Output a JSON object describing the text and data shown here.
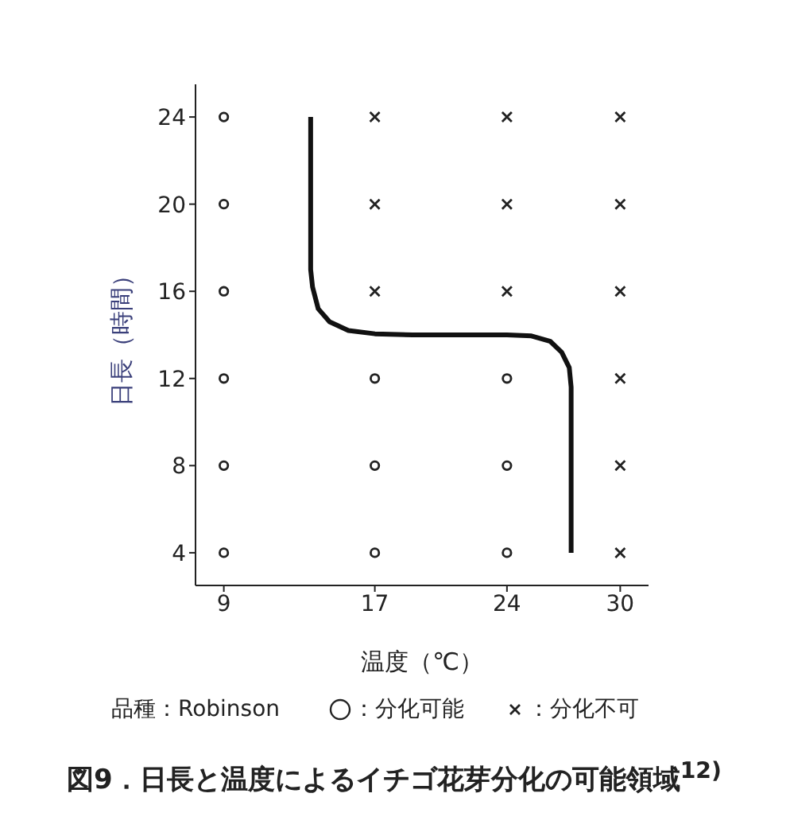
{
  "chart_data": {
    "type": "scatter",
    "title": "図9．日長と温度によるイチゴ花芽分化の可能領域$^{12)}$",
    "xlabel": "温度（℃）",
    "ylabel": "日長（時間）",
    "annotations": [
      "品種：Robinson"
    ],
    "xlim": [
      7.5,
      31.5
    ],
    "xticks": [
      9,
      17,
      24,
      30
    ],
    "ylim": [
      2.5,
      25.5
    ],
    "yticks": [
      4,
      8,
      12,
      16,
      20,
      24
    ],
    "legend": "bottom",
    "series": [
      {
        "name": "：分化可能",
        "color": "#222222",
        "marker": "circle",
        "x": [
          9,
          9,
          9,
          9,
          9,
          9,
          17,
          17,
          17,
          24,
          24,
          24
        ],
        "values": [
          4,
          8,
          12,
          16,
          20,
          24,
          4,
          8,
          12,
          4,
          8,
          12
        ]
      },
      {
        "name": "：分化不可",
        "color": "#222222",
        "marker": "cross",
        "x": [
          17,
          17,
          17,
          24,
          24,
          24,
          30,
          30,
          30,
          30,
          30,
          30
        ],
        "values": [
          16,
          20,
          24,
          16,
          20,
          24,
          4,
          8,
          12,
          16,
          20,
          24
        ]
      },
      {
        "type": "line",
        "color": "#111111",
        "marker": "none",
        "x": [
          13.6,
          13.6,
          13.7,
          14.0,
          14.6,
          15.6,
          17,
          19,
          22,
          24,
          25.3,
          26.3,
          26.9,
          27.3,
          27.4,
          27.4
        ],
        "values": [
          24,
          17,
          16.2,
          15.2,
          14.6,
          14.2,
          14.05,
          14,
          14,
          14,
          13.95,
          13.7,
          13.2,
          12.5,
          11.6,
          4
        ]
      }
    ]
  }
}
